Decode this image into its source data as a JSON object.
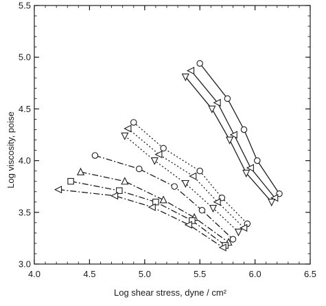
{
  "chart_data": {
    "type": "line",
    "xlabel": "Log shear stress, dyne / cm²",
    "ylabel": "Log viscosity, poise",
    "xlim": [
      4.0,
      6.5
    ],
    "ylim": [
      3.0,
      5.5
    ],
    "x_ticks": [
      "4.0",
      "4.5",
      "5.0",
      "5.5",
      "6.0",
      "6.5"
    ],
    "y_ticks": [
      "3.0",
      "3.5",
      "4.0",
      "4.5",
      "5.0",
      "5.5"
    ],
    "grid": false,
    "legend": "none",
    "series": [
      {
        "group": "solid",
        "style": "solid",
        "marker": "circle",
        "x": [
          5.5,
          5.75,
          5.9,
          6.02,
          6.22
        ],
        "y": [
          4.94,
          4.6,
          4.3,
          4.0,
          3.68
        ]
      },
      {
        "group": "solid",
        "style": "solid",
        "marker": "triangle-left",
        "x": [
          5.42,
          5.66,
          5.81,
          5.96,
          6.18
        ],
        "y": [
          4.87,
          4.56,
          4.25,
          3.93,
          3.64
        ]
      },
      {
        "group": "solid",
        "style": "solid",
        "marker": "triangle-down",
        "x": [
          5.37,
          5.61,
          5.77,
          5.92,
          6.15
        ],
        "y": [
          4.81,
          4.5,
          4.2,
          3.88,
          3.6
        ]
      },
      {
        "group": "dotted",
        "style": "dotted",
        "marker": "circle",
        "x": [
          4.9,
          5.17,
          5.5,
          5.7,
          5.93
        ],
        "y": [
          4.37,
          4.12,
          3.9,
          3.64,
          3.39
        ]
      },
      {
        "group": "dotted",
        "style": "dotted",
        "marker": "triangle-left",
        "x": [
          4.85,
          5.13,
          5.44,
          5.66,
          5.9
        ],
        "y": [
          4.31,
          4.06,
          3.85,
          3.6,
          3.35
        ]
      },
      {
        "group": "dotted",
        "style": "dotted",
        "marker": "triangle-down",
        "x": [
          4.82,
          5.09,
          5.37,
          5.62,
          5.85
        ],
        "y": [
          4.24,
          4.0,
          3.78,
          3.54,
          3.31
        ]
      },
      {
        "group": "dashdot",
        "style": "dashdot",
        "marker": "circle",
        "x": [
          4.55,
          4.95,
          5.27,
          5.52,
          5.8
        ],
        "y": [
          4.05,
          3.92,
          3.75,
          3.52,
          3.24
        ]
      },
      {
        "group": "dashdot",
        "style": "dashdot",
        "marker": "triangle-up",
        "x": [
          4.42,
          4.82,
          5.17,
          5.45,
          5.76
        ],
        "y": [
          3.89,
          3.8,
          3.62,
          3.45,
          3.21
        ]
      },
      {
        "group": "dashdot",
        "style": "dashdot",
        "marker": "square",
        "x": [
          4.33,
          4.77,
          5.1,
          5.43,
          5.73
        ],
        "y": [
          3.8,
          3.71,
          3.6,
          3.42,
          3.18
        ]
      },
      {
        "group": "dashdot",
        "style": "dashdot",
        "marker": "triangle-left",
        "x": [
          4.22,
          4.73,
          5.07,
          5.4,
          5.71
        ],
        "y": [
          3.72,
          3.66,
          3.55,
          3.38,
          3.16
        ]
      }
    ]
  }
}
